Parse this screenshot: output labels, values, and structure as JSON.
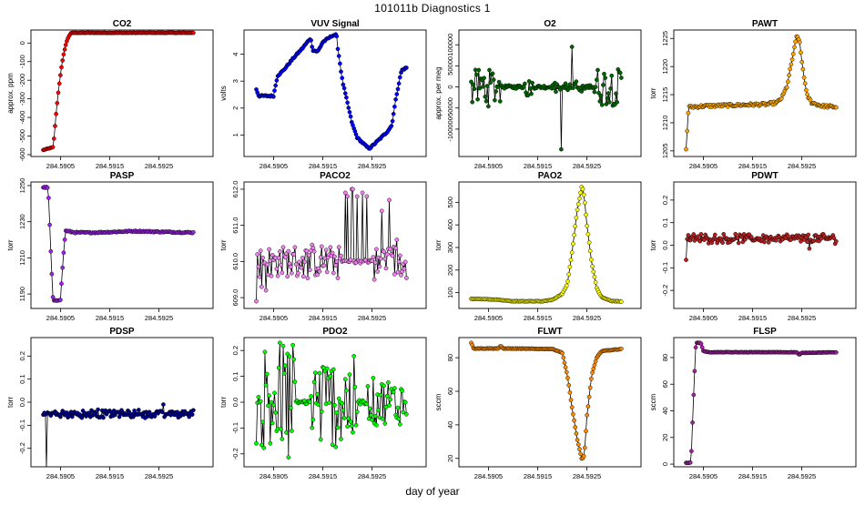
{
  "figure": {
    "title": "101011b   Diagnostics 1",
    "xlabel": "day of year",
    "x_ticks": [
      284.5905,
      284.5915,
      284.5925
    ],
    "x_tick_labels": [
      "284.5905",
      "284.5915",
      "284.5925"
    ],
    "xlim": [
      284.5899,
      284.5936
    ]
  },
  "chart_data": [
    {
      "name": "CO2",
      "type": "line",
      "title": "CO2",
      "ylabel": "approx. ppm",
      "color": "#ff0000",
      "ylim": [
        -610,
        70
      ],
      "y_ticks": [
        -600,
        -500,
        -400,
        -300,
        -200,
        -100,
        0
      ],
      "y_tick_labels": [
        "-600",
        "-500",
        "-400",
        "-300",
        "-200",
        "-100",
        "0"
      ],
      "shape": {
        "kind": "rise",
        "base": -575,
        "top": 55,
        "t0": 284.59035,
        "t1": 284.59075,
        "noise": 2,
        "pre_x": 284.59015
      }
    },
    {
      "name": "VUV Signal",
      "type": "line",
      "title": "VUV Signal",
      "ylabel": "volts",
      "color": "#0000ff",
      "ylim": [
        0.2,
        4.9
      ],
      "y_ticks": [
        1,
        2,
        3,
        4
      ],
      "y_tick_labels": [
        "1",
        "2",
        "3",
        "4"
      ],
      "shape": {
        "kind": "pts",
        "noise": 0.03,
        "pts": [
          [
            284.59015,
            2.7
          ],
          [
            284.5902,
            2.45
          ],
          [
            284.5905,
            2.45
          ],
          [
            284.59058,
            3.2
          ],
          [
            284.5907,
            3.4
          ],
          [
            284.5909,
            3.85
          ],
          [
            284.5911,
            4.25
          ],
          [
            284.59125,
            4.6
          ],
          [
            284.5913,
            4.15
          ],
          [
            284.5914,
            4.1
          ],
          [
            284.5915,
            4.45
          ],
          [
            284.5917,
            4.7
          ],
          [
            284.59178,
            4.72
          ],
          [
            284.5918,
            4.3
          ],
          [
            284.5919,
            3.0
          ],
          [
            284.5921,
            1.4
          ],
          [
            284.5922,
            0.9
          ],
          [
            284.5924,
            0.55
          ],
          [
            284.59245,
            0.5
          ],
          [
            284.5926,
            0.75
          ],
          [
            284.5928,
            1.1
          ],
          [
            284.5929,
            1.35
          ],
          [
            284.593,
            2.5
          ],
          [
            284.5931,
            3.4
          ],
          [
            284.5932,
            3.5
          ]
        ]
      }
    },
    {
      "name": "O2",
      "type": "line",
      "title": "O2",
      "ylabel": "approx. per meg",
      "color": "#006400",
      "ylim": [
        -165000,
        135000
      ],
      "y_ticks": [
        -100000,
        -50000,
        0,
        50000,
        100000
      ],
      "y_tick_labels": [
        "-100000",
        "-50000",
        "0",
        "50000",
        "100000"
      ],
      "shape": {
        "kind": "spiky",
        "base": 0,
        "noise": 4000,
        "spikes": [
          [
            284.59013,
            284.59075,
            45000
          ],
          [
            284.5912,
            284.5914,
            22000
          ],
          [
            284.5918,
            284.5924,
            10000
          ],
          [
            284.59265,
            284.5932,
            45000
          ]
        ],
        "extremes": [
          [
            284.59197,
            120000
          ],
          [
            284.59198,
            -148000
          ],
          [
            284.5922,
            95000
          ]
        ]
      }
    },
    {
      "name": "PAWT",
      "type": "line",
      "title": "PAWT",
      "ylabel": "torr",
      "color": "#ffa500",
      "ylim": [
        1204,
        1226.5
      ],
      "y_ticks": [
        1205,
        1210,
        1215,
        1220,
        1225
      ],
      "y_tick_labels": [
        "1205",
        "1210",
        "1215",
        "1220",
        "1225"
      ],
      "shape": {
        "kind": "pts",
        "noise": 0.25,
        "pts": [
          [
            284.59015,
            1205.3
          ],
          [
            284.5902,
            1212.8
          ],
          [
            284.5904,
            1212.9
          ],
          [
            284.5906,
            1213.0
          ],
          [
            284.591,
            1213.1
          ],
          [
            284.5914,
            1213.2
          ],
          [
            284.5918,
            1213.3
          ],
          [
            284.592,
            1213.6
          ],
          [
            284.5921,
            1214.5
          ],
          [
            284.5922,
            1216.5
          ],
          [
            284.5923,
            1221.0
          ],
          [
            284.5924,
            1225.5
          ],
          [
            284.59245,
            1224.8
          ],
          [
            284.5925,
            1221.0
          ],
          [
            284.5926,
            1215.0
          ],
          [
            284.5927,
            1213.6
          ],
          [
            284.5929,
            1213.0
          ],
          [
            284.5932,
            1212.8
          ]
        ]
      }
    },
    {
      "name": "PASP",
      "type": "line",
      "title": "PASP",
      "ylabel": "torr",
      "color": "#a020f0",
      "ylim": [
        1182,
        1252
      ],
      "y_ticks": [
        1190,
        1210,
        1230,
        1250
      ],
      "y_tick_labels": [
        "1190",
        "1210",
        "1230",
        "1250"
      ],
      "shape": {
        "kind": "pts",
        "noise": 0.35,
        "pts": [
          [
            284.59015,
            1249
          ],
          [
            284.59025,
            1249
          ],
          [
            284.5903,
            1215
          ],
          [
            284.59035,
            1186
          ],
          [
            284.5905,
            1187
          ],
          [
            284.59055,
            1208
          ],
          [
            284.5906,
            1225
          ],
          [
            284.5908,
            1224
          ],
          [
            284.5912,
            1224
          ],
          [
            284.592,
            1224.8
          ],
          [
            284.5924,
            1224.5
          ],
          [
            284.5932,
            1224.0
          ]
        ]
      }
    },
    {
      "name": "PACO2",
      "type": "line",
      "title": "PACO2",
      "ylabel": "torr",
      "color": "#ee82ee",
      "ylim": [
        608.7,
        612.2
      ],
      "y_ticks": [
        609,
        610,
        611,
        612
      ],
      "y_tick_labels": [
        "609.0",
        "610.0",
        "611.0",
        "612.0"
      ],
      "shape": {
        "kind": "spiky",
        "base": 610.0,
        "noise": 0.05,
        "spikes": [
          [
            284.59015,
            284.5907,
            0.4
          ],
          [
            284.5907,
            284.5919,
            0.45
          ],
          [
            284.5925,
            284.5932,
            0.45
          ]
        ],
        "pts_override": [
          [
            284.59015,
            608.9
          ],
          [
            284.59025,
            609.3
          ],
          [
            284.59035,
            609.2
          ],
          [
            284.59045,
            609.6
          ],
          [
            284.5906,
            610.1
          ],
          [
            284.59195,
            611.9
          ],
          [
            284.592,
            611.8
          ],
          [
            284.5921,
            612.0
          ],
          [
            284.5922,
            611.8
          ],
          [
            284.5923,
            611.9
          ],
          [
            284.5924,
            611.8
          ],
          [
            284.59255,
            609.5
          ],
          [
            284.5927,
            611.4
          ],
          [
            284.5928,
            610.2
          ],
          [
            284.59285,
            611.7
          ],
          [
            284.5929,
            610.2
          ],
          [
            284.593,
            610.6
          ],
          [
            284.59315,
            609.8
          ]
        ],
        "extra_tail": [
          [
            284.5919,
            611.8
          ],
          [
            284.59245,
            611.9
          ]
        ]
      }
    },
    {
      "name": "PAO2",
      "type": "line",
      "title": "PAO2",
      "ylabel": "torr",
      "color": "#ffff00",
      "ylim": [
        30,
        590
      ],
      "y_ticks": [
        100,
        200,
        300,
        400,
        500
      ],
      "y_tick_labels": [
        "100",
        "200",
        "300",
        "400",
        "500"
      ],
      "shape": {
        "kind": "pts",
        "noise": 1.0,
        "pts": [
          [
            284.59015,
            73
          ],
          [
            284.5906,
            70
          ],
          [
            284.591,
            62
          ],
          [
            284.5916,
            62
          ],
          [
            284.5918,
            68
          ],
          [
            284.592,
            95
          ],
          [
            284.5921,
            135
          ],
          [
            284.5922,
            280
          ],
          [
            284.5923,
            460
          ],
          [
            284.5924,
            575
          ],
          [
            284.59245,
            520
          ],
          [
            284.5925,
            400
          ],
          [
            284.5926,
            230
          ],
          [
            284.5927,
            120
          ],
          [
            284.5928,
            80
          ],
          [
            284.593,
            63
          ],
          [
            284.5932,
            61
          ]
        ]
      }
    },
    {
      "name": "PDWT",
      "type": "line",
      "title": "PDWT",
      "ylabel": "torr",
      "color": "#b22222",
      "ylim": [
        -0.28,
        0.28
      ],
      "y_ticks": [
        -0.2,
        -0.1,
        0.0,
        0.1,
        0.2
      ],
      "y_tick_labels": [
        "-0.2",
        "-0.1",
        "0.0",
        "0.1",
        "0.2"
      ],
      "shape": {
        "kind": "spiky",
        "base": 0.03,
        "noise": 0.012,
        "spikes": [
          [
            284.59015,
            284.5932,
            0.012
          ]
        ],
        "extremes": [
          [
            284.59015,
            -0.065
          ],
          [
            284.59265,
            -0.015
          ]
        ]
      }
    },
    {
      "name": "PDSP",
      "type": "line",
      "title": "PDSP",
      "ylabel": "torr",
      "color": "#00008b",
      "ylim": [
        -0.28,
        0.28
      ],
      "y_ticks": [
        -0.2,
        -0.1,
        0.0,
        0.1,
        0.2
      ],
      "y_tick_labels": [
        "-0.2",
        "-0.1",
        "0.0",
        "0.1",
        "0.2"
      ],
      "shape": {
        "kind": "spiky",
        "base": -0.05,
        "noise": 0.01,
        "spikes": [
          [
            284.5903,
            284.5932,
            0.012
          ]
        ],
        "extremes": [
          [
            284.59022,
            -0.29
          ],
          [
            284.5926,
            -0.01
          ]
        ]
      }
    },
    {
      "name": "PDO2",
      "type": "line",
      "title": "PDO2",
      "ylabel": "torr",
      "color": "#00ff00",
      "ylim": [
        -0.25,
        0.25
      ],
      "y_ticks": [
        -0.2,
        -0.1,
        0.0,
        0.1,
        0.2
      ],
      "y_tick_labels": [
        "-0.2",
        "-0.1",
        "0.0",
        "0.1",
        "0.2"
      ],
      "shape": {
        "kind": "spiky",
        "base": 0.0,
        "noise": 0.008,
        "spikes": [
          [
            284.59025,
            284.59095,
            0.25
          ],
          [
            284.59125,
            284.5922,
            0.18
          ],
          [
            284.5924,
            284.5932,
            0.09
          ]
        ],
        "extremes": [
          [
            284.59015,
            -0.16
          ],
          [
            284.5902,
            0.02
          ],
          [
            284.593,
            -0.06
          ]
        ],
        "clip": true
      }
    },
    {
      "name": "FLWT",
      "type": "line",
      "title": "FLWT",
      "ylabel": "sccm",
      "color": "#ff8c00",
      "ylim": [
        15,
        92
      ],
      "y_ticks": [
        20,
        40,
        60,
        80
      ],
      "y_tick_labels": [
        "20",
        "40",
        "60",
        "80"
      ],
      "shape": {
        "kind": "pts",
        "noise": 0.15,
        "pts": [
          [
            284.59015,
            89
          ],
          [
            284.5902,
            85.5
          ],
          [
            284.5907,
            85.5
          ],
          [
            284.59075,
            87
          ],
          [
            284.5908,
            85.5
          ],
          [
            284.5918,
            85.2
          ],
          [
            284.592,
            83
          ],
          [
            284.5921,
            70
          ],
          [
            284.5922,
            50
          ],
          [
            284.5923,
            32
          ],
          [
            284.5924,
            19
          ],
          [
            284.59245,
            22
          ],
          [
            284.5925,
            45
          ],
          [
            284.5926,
            70
          ],
          [
            284.5927,
            80
          ],
          [
            284.5928,
            84
          ],
          [
            284.5932,
            85.2
          ]
        ]
      }
    },
    {
      "name": "FLSP",
      "type": "line",
      "title": "FLSP",
      "ylabel": "sccm",
      "color": "#a020a0",
      "ylim": [
        -2,
        95
      ],
      "y_ticks": [
        0,
        20,
        40,
        60,
        80
      ],
      "y_tick_labels": [
        "0",
        "20",
        "40",
        "60",
        "80"
      ],
      "shape": {
        "kind": "pts",
        "noise": 0.15,
        "pts": [
          [
            284.59015,
            1
          ],
          [
            284.59025,
            1
          ],
          [
            284.5903,
            50
          ],
          [
            284.59035,
            91
          ],
          [
            284.59045,
            91
          ],
          [
            284.5905,
            85
          ],
          [
            284.5906,
            84
          ],
          [
            284.5912,
            84
          ],
          [
            284.592,
            84
          ],
          [
            284.5924,
            84
          ],
          [
            284.59245,
            82
          ],
          [
            284.5925,
            83.5
          ],
          [
            284.5932,
            84
          ]
        ]
      }
    }
  ]
}
